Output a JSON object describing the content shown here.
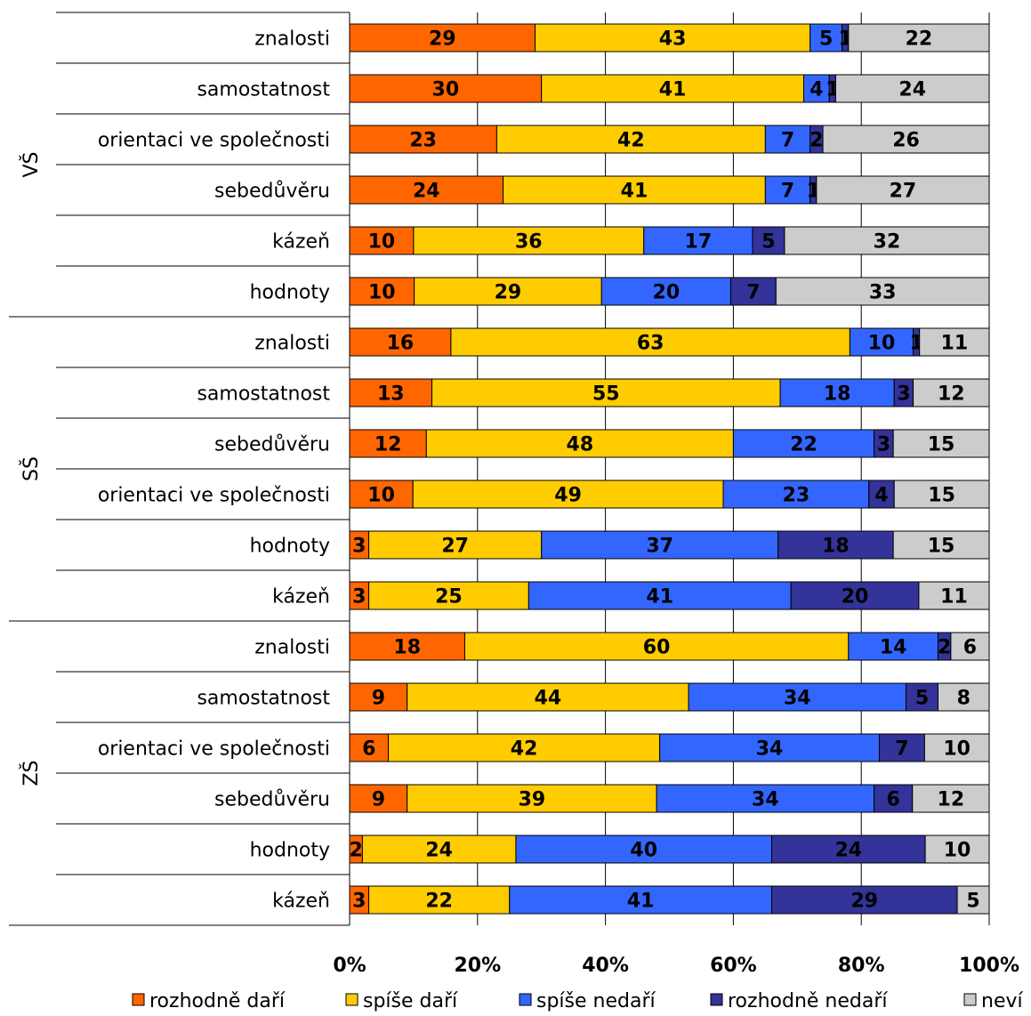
{
  "chart_data": {
    "type": "bar",
    "orientation": "horizontal",
    "stacked": "percent",
    "xlim": [
      0,
      100
    ],
    "x_ticks": [
      "0%",
      "20%",
      "40%",
      "60%",
      "80%",
      "100%"
    ],
    "grid": true,
    "legend_position": "bottom",
    "series": [
      {
        "name": "rozhodně daří",
        "color": "#FF6600"
      },
      {
        "name": "spíše daří",
        "color": "#FFCC00"
      },
      {
        "name": "spíše nedaří",
        "color": "#3366FF"
      },
      {
        "name": "rozhodně nedaří",
        "color": "#333399"
      },
      {
        "name": "neví",
        "color": "#CCCCCC"
      }
    ],
    "groups": [
      {
        "name": "VŠ",
        "rows": [
          {
            "label": "znalosti",
            "values": [
              29,
              43,
              5,
              1,
              22
            ]
          },
          {
            "label": "samostatnost",
            "values": [
              30,
              41,
              4,
              1,
              24
            ]
          },
          {
            "label": "orientaci ve společnosti",
            "values": [
              23,
              42,
              7,
              2,
              26
            ]
          },
          {
            "label": "sebedůvěru",
            "values": [
              24,
              41,
              7,
              1,
              27
            ]
          },
          {
            "label": "kázeň",
            "values": [
              10,
              36,
              17,
              5,
              32
            ]
          },
          {
            "label": "hodnoty",
            "values": [
              10,
              29,
              20,
              7,
              33
            ]
          }
        ]
      },
      {
        "name": "SŠ",
        "rows": [
          {
            "label": "znalosti",
            "values": [
              16,
              63,
              10,
              1,
              11
            ]
          },
          {
            "label": "samostatnost",
            "values": [
              13,
              55,
              18,
              3,
              12
            ]
          },
          {
            "label": "sebedůvěru",
            "values": [
              12,
              48,
              22,
              3,
              15
            ]
          },
          {
            "label": "orientaci ve společnosti",
            "values": [
              10,
              49,
              23,
              4,
              15
            ]
          },
          {
            "label": "hodnoty",
            "values": [
              3,
              27,
              37,
              18,
              15
            ]
          },
          {
            "label": "kázeň",
            "values": [
              3,
              25,
              41,
              20,
              11
            ]
          }
        ]
      },
      {
        "name": "ZŠ",
        "rows": [
          {
            "label": "znalosti",
            "values": [
              18,
              60,
              14,
              2,
              6
            ]
          },
          {
            "label": "samostatnost",
            "values": [
              9,
              44,
              34,
              5,
              8
            ]
          },
          {
            "label": "orientaci ve společnosti",
            "values": [
              6,
              42,
              34,
              7,
              10
            ]
          },
          {
            "label": "sebedůvěru",
            "values": [
              9,
              39,
              34,
              6,
              12
            ]
          },
          {
            "label": "hodnoty",
            "values": [
              2,
              24,
              40,
              24,
              10
            ]
          },
          {
            "label": "kázeň",
            "values": [
              3,
              22,
              41,
              29,
              5
            ]
          }
        ]
      }
    ]
  }
}
